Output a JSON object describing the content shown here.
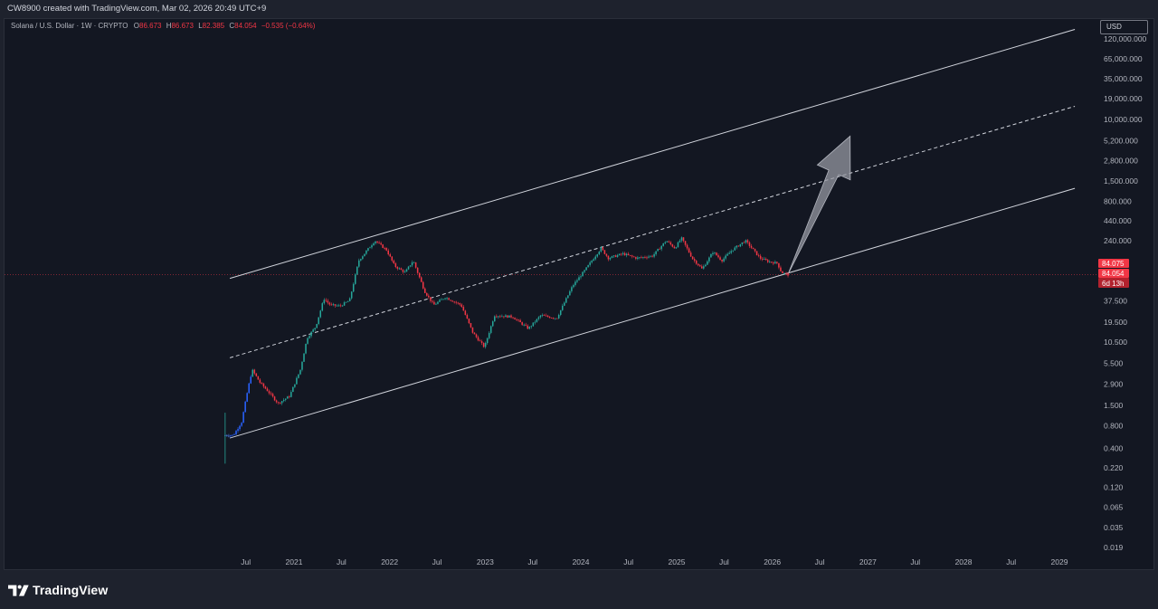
{
  "header": {
    "caption": "CW8900 created with TradingView.com, Mar 02, 2026 20:49 UTC+9"
  },
  "legend": {
    "symbol": "Solana / U.S. Dollar · 1W · CRYPTO",
    "o_label": "O",
    "o_value": "86.673",
    "h_label": "H",
    "h_value": "86.673",
    "l_label": "L",
    "l_value": "82.385",
    "c_label": "C",
    "c_value": "84.054",
    "change": "−0.535 (−0.64%)"
  },
  "currency_button": "USD",
  "brand": {
    "name": "TradingView"
  },
  "colors": {
    "background": "#131722",
    "up": "#26a69a",
    "down": "#f23645",
    "early": "#2962ff",
    "channel": "#d1d4dc",
    "arrow": "#9598a1",
    "price_line": "#f23645"
  },
  "chart_data": {
    "type": "candlestick",
    "symbol": "SOL/USD",
    "interval": "1W",
    "scale": "log",
    "y_ticks": [
      "0.019",
      "0.035",
      "0.065",
      "0.120",
      "0.220",
      "0.400",
      "0.800",
      "1.500",
      "2.900",
      "5.500",
      "10.500",
      "19.500",
      "37.500",
      "240.000",
      "440.000",
      "800.000",
      "1,500.000",
      "2,800.000",
      "5,200.000",
      "10,000.000",
      "19,000.000",
      "35,000.000",
      "65,000.000",
      "120,000.000"
    ],
    "y_tick_values": [
      0.019,
      0.035,
      0.065,
      0.12,
      0.22,
      0.4,
      0.8,
      1.5,
      2.9,
      5.5,
      10.5,
      19.5,
      37.5,
      240,
      440,
      800,
      1500,
      2800,
      5200,
      10000,
      19000,
      35000,
      65000,
      120000
    ],
    "x_ticks": [
      "Jul",
      "2021",
      "Jul",
      "2022",
      "Jul",
      "2023",
      "Jul",
      "2024",
      "Jul",
      "2025",
      "Jul",
      "2026",
      "Jul",
      "2027",
      "Jul",
      "2028",
      "Jul",
      "2029"
    ],
    "x_tick_dates": [
      "2020-07-01",
      "2021-01-01",
      "2021-07-01",
      "2022-01-01",
      "2022-07-01",
      "2023-01-01",
      "2023-07-01",
      "2024-01-01",
      "2024-07-01",
      "2025-01-01",
      "2025-07-01",
      "2026-01-01",
      "2026-07-01",
      "2027-01-01",
      "2027-07-01",
      "2028-01-01",
      "2028-07-01",
      "2029-01-01"
    ],
    "price_path": [
      [
        "2020-04-13",
        0.6
      ],
      [
        "2020-05-15",
        0.6
      ],
      [
        "2020-06-15",
        0.9
      ],
      [
        "2020-07-10",
        2.6
      ],
      [
        "2020-07-25",
        4.5
      ],
      [
        "2020-08-25",
        3.0
      ],
      [
        "2020-09-20",
        2.4
      ],
      [
        "2020-11-01",
        1.6
      ],
      [
        "2020-12-15",
        2.0
      ],
      [
        "2021-01-25",
        4.5
      ],
      [
        "2021-02-20",
        12.0
      ],
      [
        "2021-03-25",
        17.0
      ],
      [
        "2021-04-25",
        40.0
      ],
      [
        "2021-05-20",
        33.0
      ],
      [
        "2021-06-25",
        32.0
      ],
      [
        "2021-08-01",
        38.0
      ],
      [
        "2021-09-05",
        130.0
      ],
      [
        "2021-11-06",
        240.0
      ],
      [
        "2021-12-20",
        180.0
      ],
      [
        "2022-01-20",
        110.0
      ],
      [
        "2022-03-01",
        90.0
      ],
      [
        "2022-04-01",
        130.0
      ],
      [
        "2022-05-15",
        50.0
      ],
      [
        "2022-06-18",
        33.0
      ],
      [
        "2022-08-01",
        42.0
      ],
      [
        "2022-10-01",
        33.0
      ],
      [
        "2022-11-15",
        14.0
      ],
      [
        "2022-12-29",
        9.0
      ],
      [
        "2023-02-05",
        24.0
      ],
      [
        "2023-04-15",
        23.0
      ],
      [
        "2023-06-15",
        16.0
      ],
      [
        "2023-08-01",
        24.0
      ],
      [
        "2023-10-01",
        22.0
      ],
      [
        "2023-12-01",
        60.0
      ],
      [
        "2024-01-15",
        95.0
      ],
      [
        "2024-03-18",
        190.0
      ],
      [
        "2024-04-15",
        140.0
      ],
      [
        "2024-06-10",
        160.0
      ],
      [
        "2024-08-01",
        140.0
      ],
      [
        "2024-10-01",
        150.0
      ],
      [
        "2024-11-22",
        240.0
      ],
      [
        "2024-12-25",
        190.0
      ],
      [
        "2025-01-19",
        260.0
      ],
      [
        "2025-03-01",
        140.0
      ],
      [
        "2025-04-08",
        100.0
      ],
      [
        "2025-05-20",
        170.0
      ],
      [
        "2025-06-22",
        130.0
      ],
      [
        "2025-08-01",
        180.0
      ],
      [
        "2025-09-20",
        240.0
      ],
      [
        "2025-10-15",
        190.0
      ],
      [
        "2025-11-15",
        140.0
      ],
      [
        "2025-12-20",
        125.0
      ],
      [
        "2026-01-20",
        120.0
      ],
      [
        "2026-02-05",
        90.0
      ],
      [
        "2026-03-02",
        84.054
      ]
    ],
    "last_price": 84.054,
    "price_labels": [
      "84.075",
      "84.054",
      "6d 13h"
    ],
    "annotations": [
      {
        "kind": "line",
        "style": "solid",
        "name": "channel-upper",
        "from": [
          "2020-05-01",
          75
        ],
        "to": [
          "2029-03-01",
          160000
        ]
      },
      {
        "kind": "line",
        "style": "dashed",
        "name": "channel-mid",
        "from": [
          "2020-05-01",
          6.5
        ],
        "to": [
          "2029-03-01",
          15000
        ]
      },
      {
        "kind": "line",
        "style": "solid",
        "name": "channel-lower",
        "from": [
          "2020-05-01",
          0.55
        ],
        "to": [
          "2029-03-01",
          1200
        ]
      },
      {
        "kind": "arrow",
        "name": "target-arrow",
        "from": [
          "2026-03-01",
          84
        ],
        "to": [
          "2026-10-25",
          6000
        ]
      }
    ]
  }
}
